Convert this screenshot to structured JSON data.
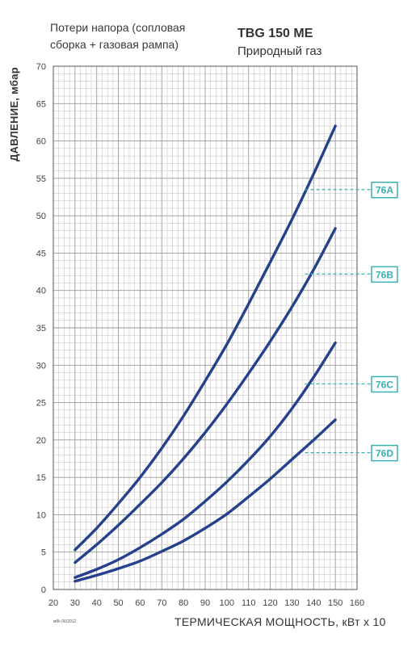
{
  "header": {
    "note": "Потери напора (сопловая сборка + газовая рампа)",
    "model": "TBG 150 ME",
    "gas": "Природный газ"
  },
  "footnote": "мбk 06/2012",
  "chart_data": {
    "type": "line",
    "ylabel": "ДАВЛЕНИЕ, мбар",
    "xlabel": "ТЕРМИЧЕСКАЯ МОЩНОСТЬ, кВт х 10",
    "xlim": [
      20,
      160
    ],
    "ylim": [
      0,
      70
    ],
    "x_ticks": [
      20,
      30,
      40,
      50,
      60,
      70,
      80,
      90,
      100,
      110,
      120,
      130,
      140,
      150,
      160
    ],
    "y_ticks": [
      0,
      5,
      10,
      15,
      20,
      25,
      30,
      35,
      40,
      45,
      50,
      55,
      60,
      65,
      70
    ],
    "grid": true,
    "line_color": "#26418c",
    "label_color": "#3ab0b0",
    "series": [
      {
        "name": "76A",
        "x": [
          30,
          40,
          50,
          60,
          70,
          80,
          90,
          100,
          110,
          120,
          130,
          140,
          150
        ],
        "values": [
          5.3,
          8.2,
          11.5,
          15.0,
          18.9,
          23.2,
          27.9,
          32.8,
          38.2,
          43.8,
          49.5,
          55.6,
          62.0
        ],
        "label_y": 53.5
      },
      {
        "name": "76B",
        "x": [
          30,
          40,
          50,
          60,
          70,
          80,
          90,
          100,
          110,
          120,
          130,
          140,
          150
        ],
        "values": [
          3.6,
          6.0,
          8.6,
          11.4,
          14.3,
          17.5,
          21.0,
          24.8,
          28.9,
          33.2,
          37.8,
          42.8,
          48.3
        ],
        "label_y": 42.2
      },
      {
        "name": "76C",
        "x": [
          30,
          40,
          50,
          60,
          70,
          80,
          90,
          100,
          110,
          120,
          130,
          140,
          150
        ],
        "values": [
          1.6,
          2.7,
          4.0,
          5.6,
          7.4,
          9.4,
          11.8,
          14.4,
          17.3,
          20.5,
          24.2,
          28.4,
          33.0
        ],
        "label_y": 27.5
      },
      {
        "name": "76D",
        "x": [
          30,
          40,
          50,
          60,
          70,
          80,
          90,
          100,
          110,
          120,
          130,
          140,
          150
        ],
        "values": [
          1.1,
          1.9,
          2.8,
          3.8,
          5.1,
          6.5,
          8.2,
          10.1,
          12.4,
          14.8,
          17.4,
          20.0,
          22.7
        ],
        "label_y": 18.3
      }
    ]
  }
}
